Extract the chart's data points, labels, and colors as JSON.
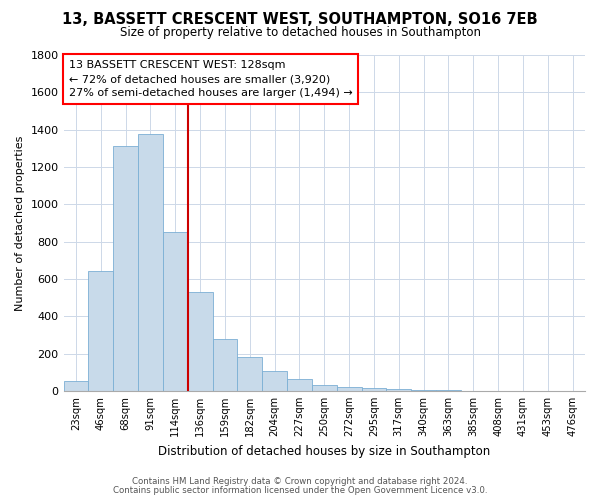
{
  "title": "13, BASSETT CRESCENT WEST, SOUTHAMPTON, SO16 7EB",
  "subtitle": "Size of property relative to detached houses in Southampton",
  "xlabel": "Distribution of detached houses by size in Southampton",
  "ylabel": "Number of detached properties",
  "bar_labels": [
    "23sqm",
    "46sqm",
    "68sqm",
    "91sqm",
    "114sqm",
    "136sqm",
    "159sqm",
    "182sqm",
    "204sqm",
    "227sqm",
    "250sqm",
    "272sqm",
    "295sqm",
    "317sqm",
    "340sqm",
    "363sqm",
    "385sqm",
    "408sqm",
    "431sqm",
    "453sqm",
    "476sqm"
  ],
  "bar_values": [
    55,
    645,
    1310,
    1375,
    850,
    530,
    280,
    180,
    105,
    65,
    30,
    22,
    15,
    8,
    5,
    3,
    2,
    2,
    1,
    0,
    2
  ],
  "bar_color": "#c8daea",
  "bar_edge_color": "#7bafd4",
  "ylim": [
    0,
    1800
  ],
  "yticks": [
    0,
    200,
    400,
    600,
    800,
    1000,
    1200,
    1400,
    1600,
    1800
  ],
  "annotation_line1": "13 BASSETT CRESCENT WEST: 128sqm",
  "annotation_line2": "← 72% of detached houses are smaller (3,920)",
  "annotation_line3": "27% of semi-detached houses are larger (1,494) →",
  "footnote1": "Contains HM Land Registry data © Crown copyright and database right 2024.",
  "footnote2": "Contains public sector information licensed under the Open Government Licence v3.0.",
  "background_color": "#ffffff",
  "grid_color": "#cdd8e8",
  "vline_color": "#cc0000",
  "title_fontsize": 10.5,
  "subtitle_fontsize": 8.5
}
